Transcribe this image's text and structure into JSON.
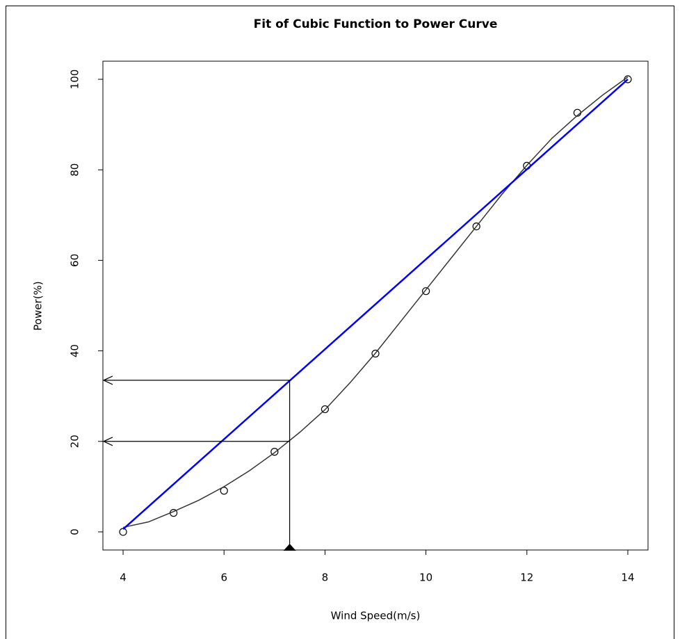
{
  "chart_data": {
    "type": "scatter",
    "title": "Fit of Cubic Function to Power Curve",
    "x_label": "Wind Speed(m/s)",
    "y_label": "Power(%)",
    "xlim": [
      3.6,
      14.4
    ],
    "ylim": [
      -4,
      104
    ],
    "xticks": [
      4,
      6,
      8,
      10,
      12,
      14
    ],
    "yticks": [
      0,
      20,
      40,
      60,
      80,
      100
    ],
    "series": [
      {
        "type": "scatter",
        "color": "#000000",
        "x": [
          4,
          5,
          6,
          7,
          8,
          9,
          10,
          11,
          12,
          13,
          14
        ],
        "values": [
          0,
          4.2,
          9.1,
          17.7,
          27.1,
          39.4,
          53.2,
          67.5,
          80.9,
          92.6,
          100
        ]
      },
      {
        "type": "line",
        "color": "#333333",
        "x": [
          4,
          4.5,
          5,
          5.5,
          6,
          6.5,
          7,
          7.5,
          8,
          8.5,
          9,
          9.5,
          10,
          10.5,
          11,
          11.5,
          12,
          12.5,
          13,
          13.5,
          14
        ],
        "values": [
          1,
          2.2,
          4.5,
          7,
          10,
          13.5,
          17.5,
          22,
          27,
          33,
          39.5,
          46.5,
          53.5,
          60.5,
          67.5,
          74.5,
          81,
          87,
          92,
          96.5,
          100.5
        ]
      },
      {
        "type": "line",
        "color": "#0000ff",
        "x": [
          4,
          14
        ],
        "values": [
          0.6,
          100
        ]
      }
    ],
    "reference_x": 7.3,
    "reference_y": [
      33.5,
      20
    ]
  }
}
